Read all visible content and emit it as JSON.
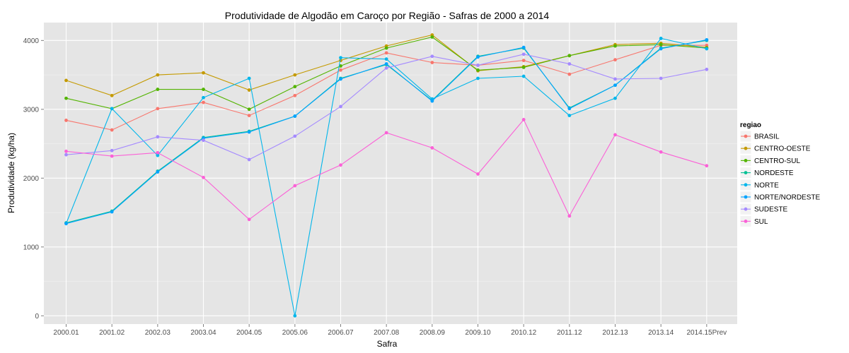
{
  "chart_data": {
    "type": "line",
    "title": "Produtividade de Algodão em Caroço por Região - Safras de 2000 a 2014",
    "xlabel": "Safra",
    "ylabel": "Produtividade (kg/ha)",
    "ylim": [
      -120,
      4260
    ],
    "yticks": [
      "0",
      "1000",
      "2000",
      "3000",
      "4000"
    ],
    "grid": true,
    "legend_position": "right",
    "legend_title": "regiao",
    "categories": [
      "2000.01",
      "2001.02",
      "2002.03",
      "2003.04",
      "2004.05",
      "2005.06",
      "2006.07",
      "2007.08",
      "2008.09",
      "2009.10",
      "2010.12",
      "2011.12",
      "2012.13",
      "2013.14",
      "2014.15Prev"
    ],
    "series": [
      {
        "name": "BRASIL",
        "color": "#F8766D",
        "values": [
          2840,
          2700,
          3010,
          3100,
          2910,
          3200,
          3570,
          3820,
          3680,
          3640,
          3710,
          3510,
          3720,
          3930,
          3930
        ]
      },
      {
        "name": "CENTRO-OESTE",
        "color": "#C49A00",
        "values": [
          3420,
          3200,
          3500,
          3530,
          3280,
          3500,
          3710,
          3920,
          4080,
          3560,
          3620,
          3780,
          3940,
          3960,
          3900
        ]
      },
      {
        "name": "CENTRO-SUL",
        "color": "#53B400",
        "values": [
          3160,
          3010,
          3290,
          3290,
          3000,
          3330,
          3630,
          3890,
          4050,
          3570,
          3610,
          3780,
          3920,
          3940,
          3890
        ]
      },
      {
        "name": "NORDESTE",
        "color": "#00C094",
        "values": [
          1350,
          1520,
          2100,
          2590,
          2680,
          2900,
          3450,
          3650,
          3130,
          3770,
          3890,
          3020,
          3350,
          3890,
          4000
        ]
      },
      {
        "name": "NORTE",
        "color": "#00B6EB",
        "values": [
          1340,
          3010,
          2330,
          3170,
          3450,
          0,
          3750,
          3730,
          3150,
          3450,
          3480,
          2910,
          3160,
          4030,
          3880
        ]
      },
      {
        "name": "NORTE/NORDESTE",
        "color": "#06A4FF",
        "values": [
          1340,
          1510,
          2090,
          2580,
          2670,
          2900,
          3440,
          3660,
          3120,
          3760,
          3900,
          3010,
          3350,
          3880,
          4010
        ]
      },
      {
        "name": "SUDESTE",
        "color": "#A58AFF",
        "values": [
          2340,
          2400,
          2600,
          2550,
          2270,
          2610,
          3040,
          3600,
          3770,
          3640,
          3800,
          3660,
          3440,
          3450,
          3580
        ]
      },
      {
        "name": "SUL",
        "color": "#FB61D7",
        "values": [
          2390,
          2320,
          2370,
          2010,
          1400,
          1890,
          2190,
          2660,
          2440,
          2060,
          2850,
          1450,
          2630,
          2380,
          2180
        ]
      }
    ]
  }
}
